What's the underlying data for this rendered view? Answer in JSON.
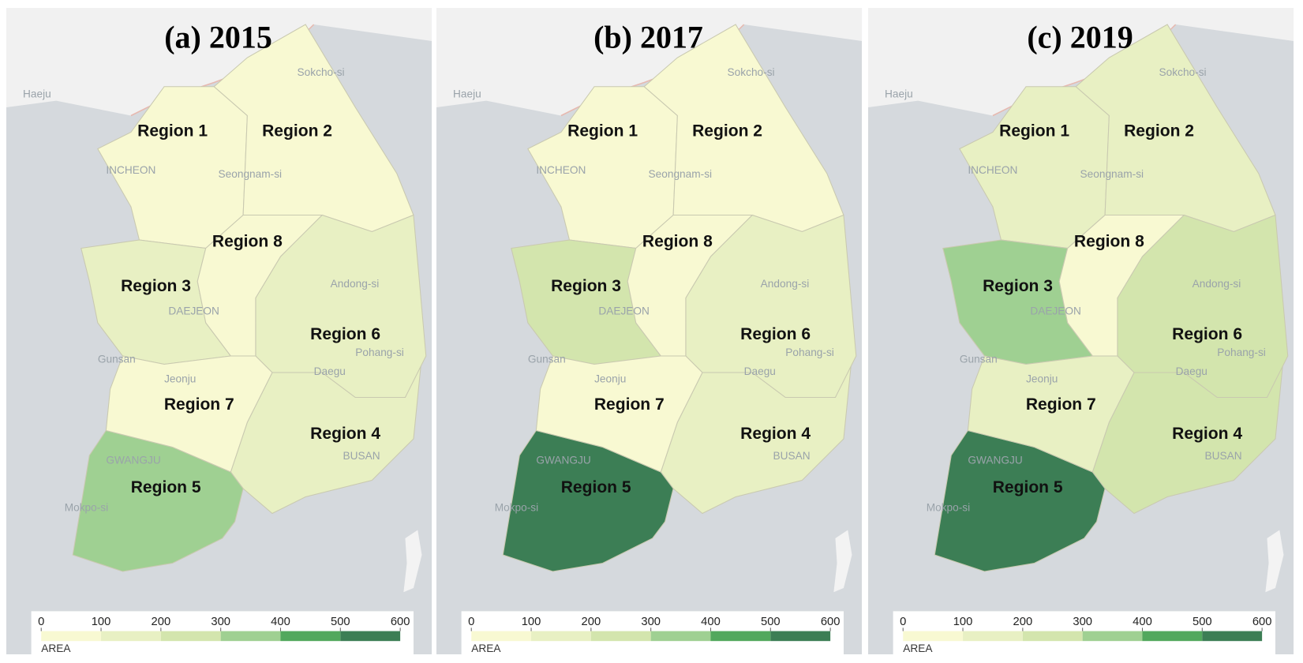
{
  "legend": {
    "title": "AREA",
    "ticks": [
      0,
      100,
      200,
      300,
      400,
      500,
      600
    ],
    "colors": [
      "#f8f9d2",
      "#e8f0c3",
      "#d3e5ad",
      "#9fd092",
      "#52a85d",
      "#3c7e55"
    ]
  },
  "cities": [
    "Haeju",
    "INCHEON",
    "Seongnam-si",
    "Sokcho-si",
    "Andong-si",
    "DAEJEON",
    "Gunsan",
    "Jeonju",
    "Pohang-si",
    "Daegu",
    "BUSAN",
    "GWANGJU",
    "Mokpo-si"
  ],
  "panels": [
    {
      "title": "(a) 2015",
      "regions": [
        {
          "name": "Region 1",
          "value": 50
        },
        {
          "name": "Region 2",
          "value": 50
        },
        {
          "name": "Region 3",
          "value": 150
        },
        {
          "name": "Region 4",
          "value": 150
        },
        {
          "name": "Region 5",
          "value": 350
        },
        {
          "name": "Region 6",
          "value": 150
        },
        {
          "name": "Region 7",
          "value": 50
        },
        {
          "name": "Region 8",
          "value": 50
        }
      ]
    },
    {
      "title": "(b) 2017",
      "regions": [
        {
          "name": "Region 1",
          "value": 50
        },
        {
          "name": "Region 2",
          "value": 50
        },
        {
          "name": "Region 3",
          "value": 250
        },
        {
          "name": "Region 4",
          "value": 150
        },
        {
          "name": "Region 5",
          "value": 550
        },
        {
          "name": "Region 6",
          "value": 150
        },
        {
          "name": "Region 7",
          "value": 50
        },
        {
          "name": "Region 8",
          "value": 50
        }
      ]
    },
    {
      "title": "(c) 2019",
      "regions": [
        {
          "name": "Region 1",
          "value": 150
        },
        {
          "name": "Region 2",
          "value": 150
        },
        {
          "name": "Region 3",
          "value": 350
        },
        {
          "name": "Region 4",
          "value": 250
        },
        {
          "name": "Region 5",
          "value": 550
        },
        {
          "name": "Region 6",
          "value": 250
        },
        {
          "name": "Region 7",
          "value": 150
        },
        {
          "name": "Region 8",
          "value": 50
        }
      ]
    }
  ]
}
